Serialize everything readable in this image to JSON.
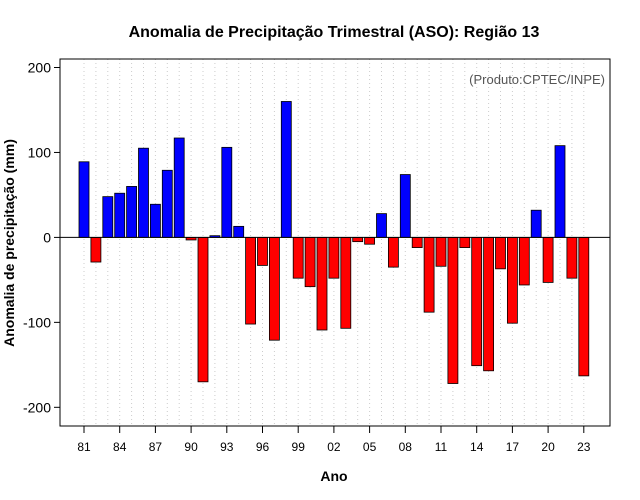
{
  "chart_data": {
    "type": "bar",
    "title": "Anomalia de Precipitação Trimestral (ASO): Região 13",
    "xlabel": "Ano",
    "ylabel": "Anomalia de precipitação (mm)",
    "credit": "(Produto:CPTEC/INPE)",
    "ylim": [
      -222,
      210
    ],
    "yticks": [
      -200,
      -100,
      0,
      100,
      200
    ],
    "xtick_labels": [
      "81",
      "84",
      "87",
      "90",
      "93",
      "96",
      "99",
      "02",
      "05",
      "08",
      "11",
      "14",
      "17",
      "20",
      "23"
    ],
    "xtick_label_interval": 3,
    "grid": "vertical-dotted",
    "colors": {
      "positive": "#0000ff",
      "negative": "#ff0000",
      "zero_line": "#000000"
    },
    "categories": [
      "1981",
      "1982",
      "1983",
      "1984",
      "1985",
      "1986",
      "1987",
      "1988",
      "1989",
      "1990",
      "1991",
      "1992",
      "1993",
      "1994",
      "1995",
      "1996",
      "1997",
      "1998",
      "1999",
      "2000",
      "2001",
      "2002",
      "2003",
      "2004",
      "2005",
      "2006",
      "2007",
      "2008",
      "2009",
      "2010",
      "2011",
      "2012",
      "2013",
      "2014",
      "2015",
      "2016",
      "2017",
      "2018",
      "2019",
      "2020",
      "2021",
      "2022",
      "2023"
    ],
    "values": [
      89,
      -29,
      48,
      52,
      60,
      105,
      39,
      79,
      117,
      -3,
      -170,
      2,
      106,
      13,
      -102,
      -33,
      -121,
      160,
      -48,
      -58,
      -109,
      -48,
      -107,
      -5,
      -8,
      28,
      -35,
      74,
      -12,
      -88,
      -34,
      -172,
      -12,
      -151,
      -157,
      -37,
      -101,
      -56,
      32,
      -53,
      108,
      -48,
      -163
    ]
  }
}
